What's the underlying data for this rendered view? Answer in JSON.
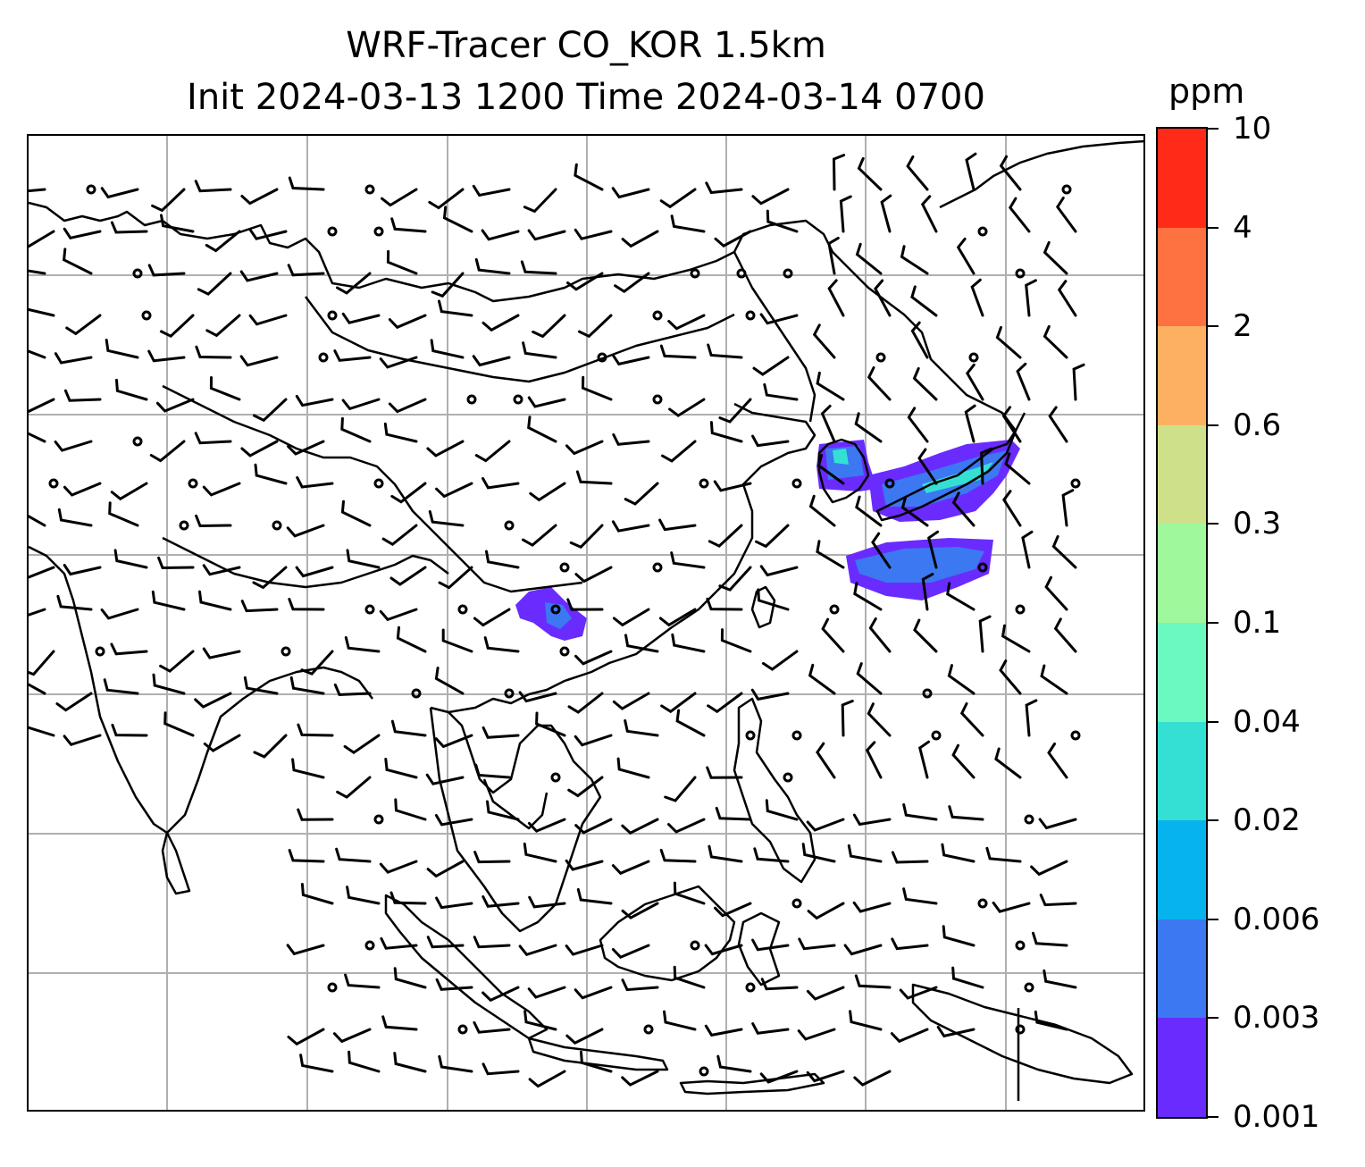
{
  "title": {
    "line1": "WRF-Tracer CO_KOR 1.5km",
    "line2": "Init 2024-03-13 1200 Time 2024-03-14 0700"
  },
  "colorbar": {
    "unit": "ppm",
    "levels": [
      "0.001",
      "0.003",
      "0.006",
      "0.02",
      "0.04",
      "0.1",
      "0.3",
      "0.6",
      "2",
      "4",
      "10"
    ],
    "colors": [
      "#6a2bff",
      "#3b78f2",
      "#07b3ec",
      "#34e0d3",
      "#6cf9bf",
      "#9ff99c",
      "#cfe08a",
      "#fdb062",
      "#fe7140",
      "#ff2b18"
    ]
  },
  "map": {
    "gridlines": true,
    "wind_barbs": true,
    "tracer_plumes": [
      "Korea / Sea of Japan region",
      "Yunnan / southern China region"
    ]
  }
}
